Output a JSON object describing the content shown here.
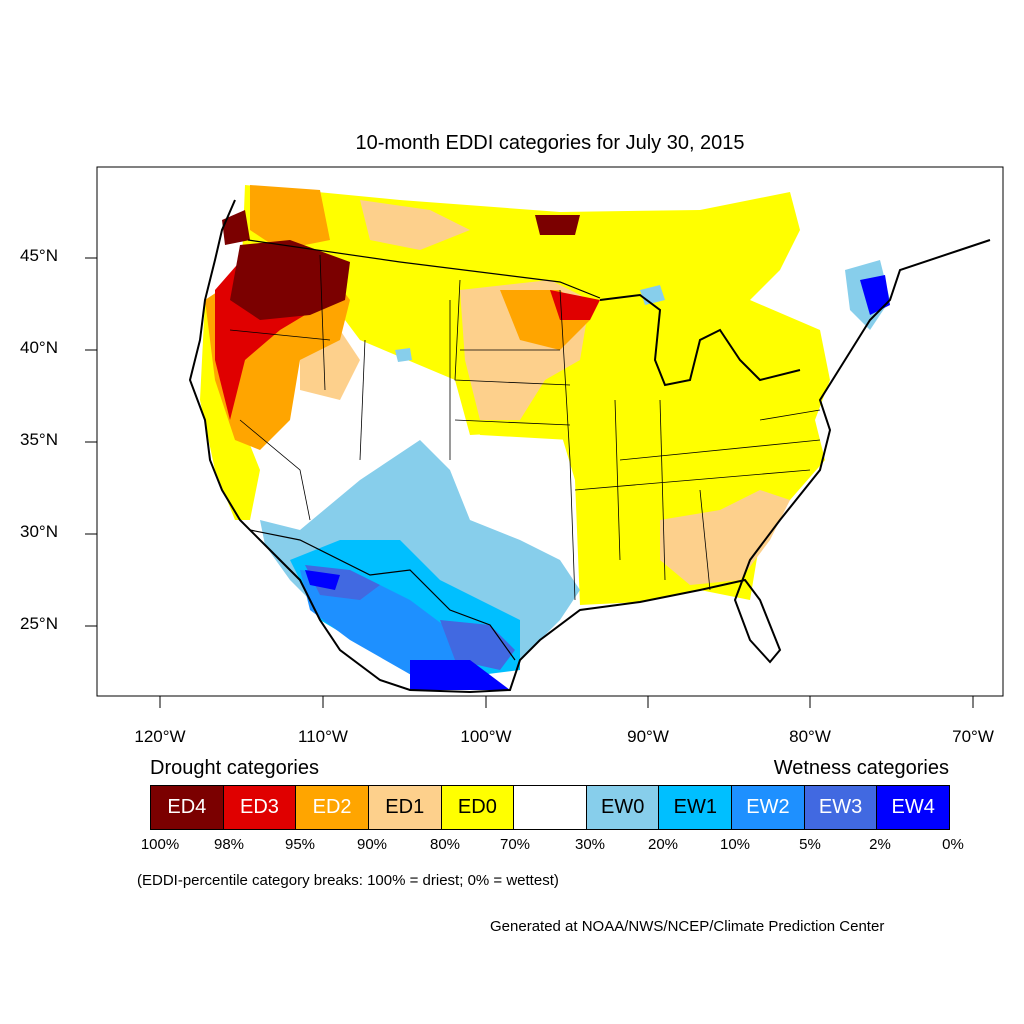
{
  "map": {
    "title": "10-month EDDI categories for July 30, 2015",
    "lat_labels": [
      "45°N",
      "40°N",
      "35°N",
      "30°N",
      "25°N"
    ],
    "lon_labels": [
      "120°W",
      "110°W",
      "100°W",
      "90°W",
      "80°W",
      "70°W"
    ]
  },
  "legend": {
    "drought_heading": "Drought categories",
    "wetness_heading": "Wetness categories",
    "boxes": [
      {
        "label": "ED4",
        "color": "#7b0000",
        "text_color": "#ffffff"
      },
      {
        "label": "ED3",
        "color": "#e00000",
        "text_color": "#ffffff"
      },
      {
        "label": "ED2",
        "color": "#ffa500",
        "text_color": "#ffffff"
      },
      {
        "label": "ED1",
        "color": "#fdd08c",
        "text_color": "#000000"
      },
      {
        "label": "ED0",
        "color": "#ffff00",
        "text_color": "#000000"
      },
      {
        "label": "",
        "color": "#ffffff",
        "text_color": "#000000"
      },
      {
        "label": "EW0",
        "color": "#87ceeb",
        "text_color": "#000000"
      },
      {
        "label": "EW1",
        "color": "#00bfff",
        "text_color": "#000000"
      },
      {
        "label": "EW2",
        "color": "#1e90ff",
        "text_color": "#ffffff"
      },
      {
        "label": "EW3",
        "color": "#4169e1",
        "text_color": "#ffffff"
      },
      {
        "label": "EW4",
        "color": "#0000ff",
        "text_color": "#ffffff"
      }
    ],
    "ticks": [
      "100%",
      "98%",
      "95%",
      "90%",
      "80%",
      "70%",
      "30%",
      "20%",
      "10%",
      "5%",
      "2%",
      "0%"
    ],
    "note": "(EDDI-percentile category breaks: 100% = driest; 0% = wettest)"
  },
  "credit": "Generated at NOAA/NWS/NCEP/Climate Prediction Center"
}
